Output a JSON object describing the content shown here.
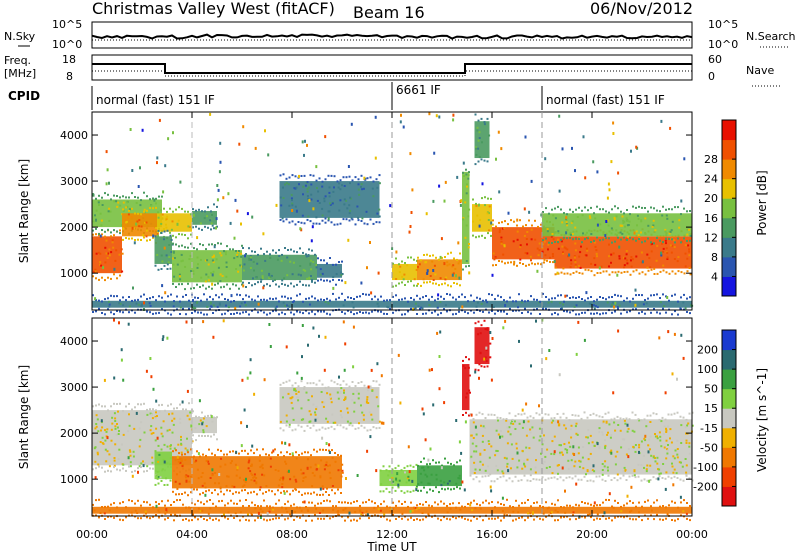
{
  "header": {
    "title": "Christmas Valley West (fitACF)",
    "beam": "Beam 16",
    "date": "06/Nov/2012"
  },
  "strip_labels": {
    "nsky": "N.Sky",
    "nsearch": "N.Search",
    "freq": "Freq.",
    "freq_unit": "[MHz]",
    "nave": "Nave",
    "cpid": "CPID",
    "noise_top": "10^5",
    "noise_bottom": "10^0",
    "freq_top": "18",
    "freq_bottom": "8",
    "nave_top": "60",
    "nave_bottom": "0"
  },
  "cpid_segments": [
    {
      "label": "normal (fast) 151 IF",
      "start_hour": 0
    },
    {
      "label": "6661 IF",
      "start_hour": 12
    },
    {
      "label": "normal (fast) 151 IF",
      "start_hour": 18
    }
  ],
  "axes": {
    "x_label": "Time UT",
    "x_ticks": [
      "00:00",
      "04:00",
      "08:00",
      "12:00",
      "16:00",
      "20:00",
      "00:00"
    ],
    "y_label": "Slant Range [km]",
    "y_ticks": [
      "1000",
      "2000",
      "3000",
      "4000"
    ],
    "ylim": [
      200,
      4500
    ],
    "xlim": [
      0,
      24
    ]
  },
  "colorbars": {
    "power": {
      "label": "Power [dB]",
      "ticks": [
        "4",
        "8",
        "12",
        "16",
        "20",
        "24",
        "28"
      ],
      "colors": [
        "#1515e0",
        "#2a55b0",
        "#3a7a8a",
        "#4a9a60",
        "#78c040",
        "#e8c000",
        "#f08a00",
        "#f05000",
        "#e81000"
      ]
    },
    "velocity": {
      "label": "Velocity [m s^-1]",
      "ticks": [
        "200",
        "100",
        "50",
        "15",
        "-15",
        "-50",
        "-100",
        "-200"
      ],
      "colors": [
        "#1a3ad0",
        "#2a6a70",
        "#3aa040",
        "#80d040",
        "#c8c8c0",
        "#f0b000",
        "#f07800",
        "#f04000",
        "#e01010"
      ]
    }
  },
  "chart_data": [
    {
      "type": "heatmap",
      "name": "power",
      "x_unit": "hour UT",
      "y_unit": "km",
      "regions": [
        {
          "x0": 0.0,
          "x1": 1.2,
          "y0": 1000,
          "y1": 1800,
          "value": 28
        },
        {
          "x0": 0.0,
          "x1": 2.8,
          "y0": 2000,
          "y1": 2600,
          "value": 16
        },
        {
          "x0": 1.2,
          "x1": 2.6,
          "y0": 1800,
          "y1": 2300,
          "value": 24
        },
        {
          "x0": 2.6,
          "x1": 4.0,
          "y0": 1900,
          "y1": 2300,
          "value": 20
        },
        {
          "x0": 4.0,
          "x1": 5.0,
          "y0": 2050,
          "y1": 2350,
          "value": 12
        },
        {
          "x0": 2.5,
          "x1": 3.2,
          "y0": 1200,
          "y1": 1800,
          "value": 12
        },
        {
          "x0": 3.2,
          "x1": 6.0,
          "y0": 800,
          "y1": 1500,
          "value": 16
        },
        {
          "x0": 6.0,
          "x1": 9.0,
          "y0": 850,
          "y1": 1400,
          "value": 12
        },
        {
          "x0": 9.0,
          "x1": 10.0,
          "y0": 900,
          "y1": 1200,
          "value": 8
        },
        {
          "x0": 7.5,
          "x1": 11.5,
          "y0": 2200,
          "y1": 3000,
          "value": 8
        },
        {
          "x0": 12.0,
          "x1": 13.0,
          "y0": 850,
          "y1": 1200,
          "value": 20
        },
        {
          "x0": 13.0,
          "x1": 14.8,
          "y0": 850,
          "y1": 1300,
          "value": 24
        },
        {
          "x0": 14.8,
          "x1": 15.1,
          "y0": 1200,
          "y1": 3200,
          "value": 16
        },
        {
          "x0": 15.3,
          "x1": 15.9,
          "y0": 3500,
          "y1": 4300,
          "value": 12
        },
        {
          "x0": 15.2,
          "x1": 16.0,
          "y0": 1900,
          "y1": 2500,
          "value": 20
        },
        {
          "x0": 16.0,
          "x1": 18.5,
          "y0": 1300,
          "y1": 2000,
          "value": 28
        },
        {
          "x0": 18.5,
          "x1": 24.0,
          "y0": 1100,
          "y1": 1800,
          "value": 28
        },
        {
          "x0": 18.0,
          "x1": 24.0,
          "y0": 1800,
          "y1": 2300,
          "value": 16
        },
        {
          "x0": 0.0,
          "x1": 24.0,
          "y0": 250,
          "y1": 400,
          "value": 8
        }
      ]
    },
    {
      "type": "heatmap",
      "name": "velocity",
      "x_unit": "hour UT",
      "y_unit": "km",
      "regions": [
        {
          "x0": 0.0,
          "x1": 4.0,
          "y0": 1300,
          "y1": 2500,
          "value": 0
        },
        {
          "x0": 4.0,
          "x1": 5.0,
          "y0": 2000,
          "y1": 2350,
          "value": 0
        },
        {
          "x0": 2.5,
          "x1": 3.2,
          "y0": 1000,
          "y1": 1600,
          "value": 20
        },
        {
          "x0": 3.2,
          "x1": 10.0,
          "y0": 800,
          "y1": 1500,
          "value": -60
        },
        {
          "x0": 7.5,
          "x1": 11.5,
          "y0": 2200,
          "y1": 3000,
          "value": 0
        },
        {
          "x0": 11.5,
          "x1": 13.0,
          "y0": 850,
          "y1": 1200,
          "value": 15
        },
        {
          "x0": 13.0,
          "x1": 14.8,
          "y0": 850,
          "y1": 1300,
          "value": 60
        },
        {
          "x0": 14.8,
          "x1": 15.1,
          "y0": 2500,
          "y1": 3500,
          "value": -200
        },
        {
          "x0": 15.3,
          "x1": 15.9,
          "y0": 3500,
          "y1": 4300,
          "value": -200
        },
        {
          "x0": 15.1,
          "x1": 24.0,
          "y0": 1100,
          "y1": 2300,
          "value": 0
        },
        {
          "x0": 0.0,
          "x1": 24.0,
          "y0": 250,
          "y1": 400,
          "value": -50
        }
      ]
    }
  ]
}
